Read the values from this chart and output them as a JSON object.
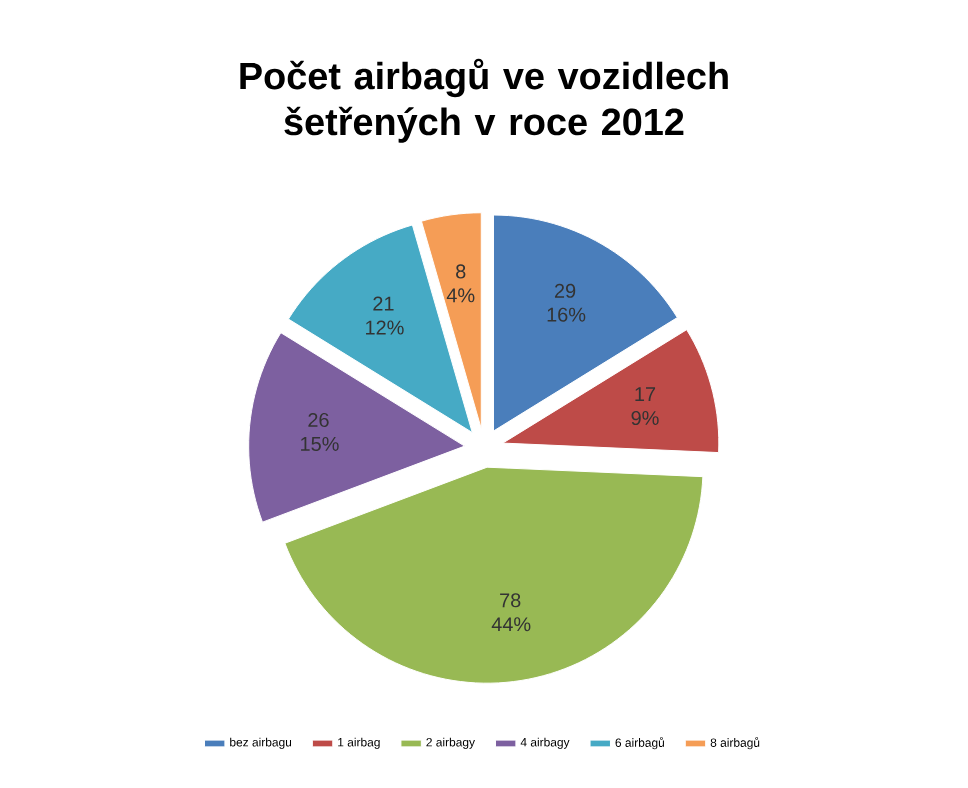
{
  "chart_data": {
    "type": "pie",
    "title": "Počet airbagů ve vozidlech šetřených v roce 2012",
    "categories": [
      "bez airbagu",
      "1 airbag",
      "2 airbagy",
      "4 airbagy",
      "6 airbagů",
      "8 airbagů"
    ],
    "values": [
      29,
      17,
      78,
      26,
      21,
      8
    ],
    "value_labels": [
      "29 16%",
      "17 9%",
      "78 44%",
      "26 15%",
      "21 12%",
      "8 4%"
    ],
    "colors": [
      "#4a7ebb",
      "#be4b48",
      "#98b954",
      "#7d60a0",
      "#46aac5",
      "#f59d56"
    ],
    "legend": "bottom"
  }
}
